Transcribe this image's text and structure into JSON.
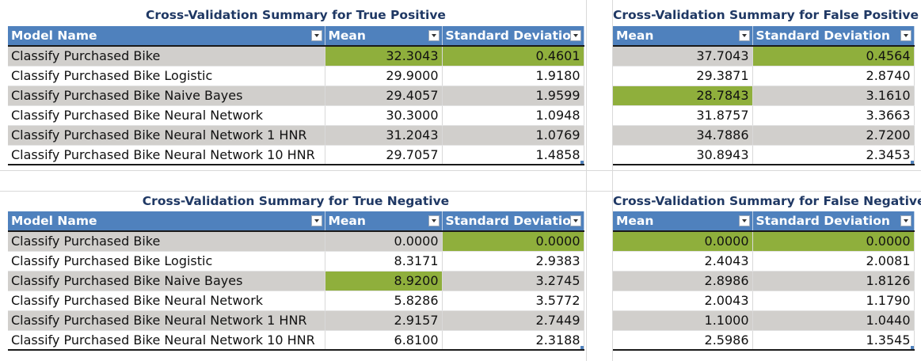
{
  "columns": {
    "model_name": "Model Name",
    "mean": "Mean",
    "std": "Standard Deviation"
  },
  "highlight_color": "#8faf3c",
  "header_color": "#4f81bd",
  "models": [
    "Classify Purchased Bike",
    "Classify Purchased Bike Logistic",
    "Classify Purchased Bike Naive Bayes",
    "Classify Purchased Bike Neural Network",
    "Classify Purchased Bike Neural Network 1 HNR",
    "Classify Purchased Bike Neural Network 10 HNR"
  ],
  "true_positive": {
    "title": "Cross-Validation Summary for True Positive",
    "rows": [
      {
        "mean": "32.3043",
        "std": "0.4601"
      },
      {
        "mean": "29.9000",
        "std": "1.9180"
      },
      {
        "mean": "29.4057",
        "std": "1.9599"
      },
      {
        "mean": "30.3000",
        "std": "1.0948"
      },
      {
        "mean": "31.2043",
        "std": "1.0769"
      },
      {
        "mean": "29.7057",
        "std": "1.4858"
      }
    ]
  },
  "false_positive": {
    "title": "Cross-Validation Summary for False Positive",
    "rows": [
      {
        "mean": "37.7043",
        "std": "0.4564"
      },
      {
        "mean": "29.3871",
        "std": "2.8740"
      },
      {
        "mean": "28.7843",
        "std": "3.1610"
      },
      {
        "mean": "31.8757",
        "std": "3.3663"
      },
      {
        "mean": "34.7886",
        "std": "2.7200"
      },
      {
        "mean": "30.8943",
        "std": "2.3453"
      }
    ]
  },
  "true_negative": {
    "title": "Cross-Validation Summary for True Negative",
    "rows": [
      {
        "mean": "0.0000",
        "std": "0.0000"
      },
      {
        "mean": "8.3171",
        "std": "2.9383"
      },
      {
        "mean": "8.9200",
        "std": "3.2745"
      },
      {
        "mean": "5.8286",
        "std": "3.5772"
      },
      {
        "mean": "2.9157",
        "std": "2.7449"
      },
      {
        "mean": "6.8100",
        "std": "2.3188"
      }
    ]
  },
  "false_negative": {
    "title": "Cross-Validation Summary for False Negative",
    "rows": [
      {
        "mean": "0.0000",
        "std": "0.0000"
      },
      {
        "mean": "2.4043",
        "std": "2.0081"
      },
      {
        "mean": "2.8986",
        "std": "1.8126"
      },
      {
        "mean": "2.0043",
        "std": "1.1790"
      },
      {
        "mean": "1.1000",
        "std": "1.0440"
      },
      {
        "mean": "2.5986",
        "std": "1.3545"
      }
    ]
  }
}
